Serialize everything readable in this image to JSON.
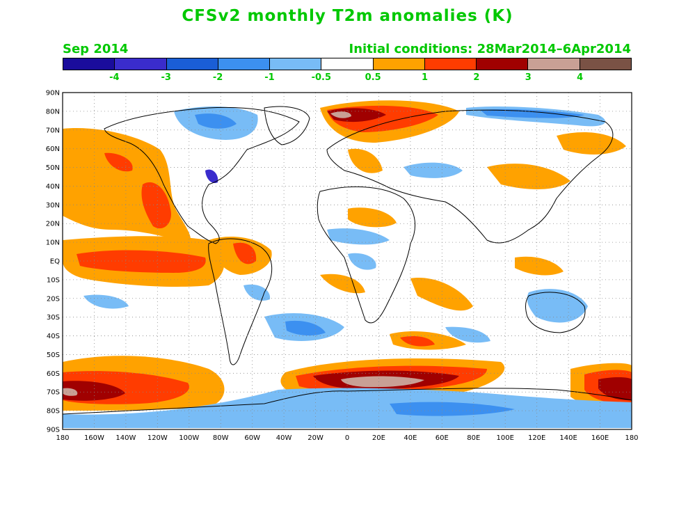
{
  "title": "CFSv2 monthly T2m anomalies (K)",
  "valid_month": "Sep 2014",
  "initial_conditions": "Initial conditions: 28Mar2014–6Apr2014",
  "colorbar": {
    "colors": [
      "#1a0c9c",
      "#3a2ccc",
      "#1a5ed6",
      "#3c90f0",
      "#78bcf6",
      "#ffffff",
      "#ffa200",
      "#ff3c00",
      "#a00000",
      "#c9a095",
      "#7a5245"
    ],
    "tick_labels": [
      "-4",
      "-3",
      "-2",
      "-1",
      "-0.5",
      "0.5",
      "1",
      "2",
      "3",
      "4"
    ]
  },
  "axes": {
    "lat_labels": [
      "90N",
      "80N",
      "70N",
      "60N",
      "50N",
      "40N",
      "30N",
      "20N",
      "10N",
      "EQ",
      "10S",
      "20S",
      "30S",
      "40S",
      "50S",
      "60S",
      "70S",
      "80S",
      "90S"
    ],
    "lon_labels": [
      "180",
      "160W",
      "140W",
      "120W",
      "100W",
      "80W",
      "60W",
      "40W",
      "20W",
      "0",
      "20E",
      "40E",
      "60E",
      "80E",
      "100E",
      "120E",
      "140E",
      "160E",
      "180"
    ]
  }
}
